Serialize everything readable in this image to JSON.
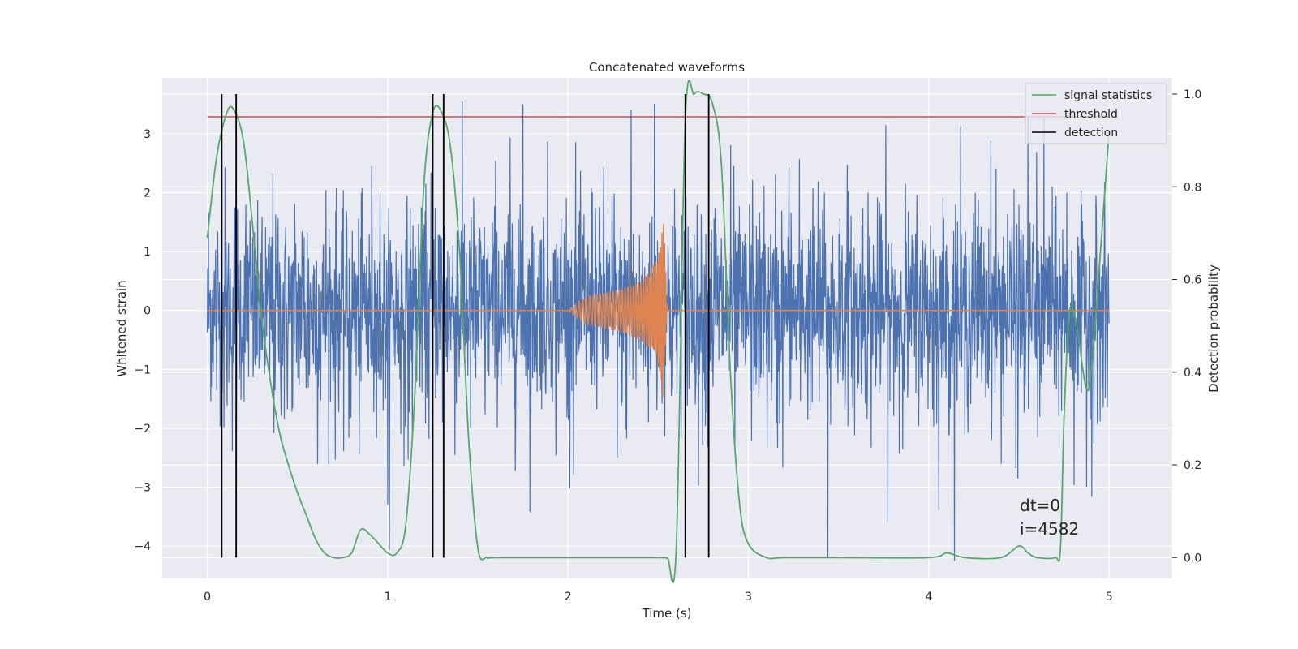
{
  "chart_data": {
    "type": "line",
    "title": "Concatenated waveforms",
    "xlabel": "Time (s)",
    "ylabel": "Whitened strain",
    "y2label": "Detection probability",
    "xlim": [
      -0.25,
      5.35
    ],
    "ylim": [
      -4.55,
      3.95
    ],
    "y2lim": [
      -0.045,
      1.035
    ],
    "xticks": [
      0,
      1,
      2,
      3,
      4,
      5
    ],
    "yticks": [
      -4,
      -3,
      -2,
      -1,
      0,
      1,
      2,
      3
    ],
    "y2ticks": [
      0.0,
      0.2,
      0.4,
      0.6,
      0.8,
      1.0
    ],
    "grid": true,
    "legend_position": "top-right",
    "colors": {
      "plot_bg": "#eaeaf2",
      "grid": "#ffffff",
      "noise": "#4c72b0",
      "injection": "#dd8452",
      "signal_statistics": "#55a868",
      "threshold": "#c44e52",
      "detection": "#000000",
      "text": "#262626"
    },
    "series": [
      {
        "role": "noise",
        "x_range": [
          0,
          5
        ],
        "amplitude_y": [
          -2.0,
          2.0
        ],
        "extreme_peaks": [
          [
            0.08,
            2.8
          ],
          [
            1.75,
            3.5
          ],
          [
            2.35,
            3.4
          ],
          [
            2.48,
            3.5
          ],
          [
            4.55,
            3.3
          ],
          [
            3.44,
            -4.2
          ],
          [
            1.0,
            -3.3
          ]
        ]
      },
      {
        "role": "injection",
        "x": [
          0,
          2.0,
          2.1,
          2.2,
          2.3,
          2.4,
          2.45,
          2.5,
          2.53,
          2.55,
          5.0
        ],
        "y_envelope": [
          0,
          0,
          0.25,
          0.3,
          0.38,
          0.5,
          0.65,
          0.9,
          1.6,
          0,
          0
        ]
      },
      {
        "name": "signal statistics",
        "axis": "right",
        "x": [
          0.0,
          0.05,
          0.1,
          0.14,
          0.2,
          0.25,
          0.3,
          0.35,
          0.4,
          0.45,
          0.5,
          0.55,
          0.6,
          0.65,
          0.7,
          0.75,
          0.8,
          0.85,
          0.9,
          0.95,
          1.0,
          1.05,
          1.1,
          1.15,
          1.2,
          1.25,
          1.3,
          1.35,
          1.4,
          1.45,
          1.5,
          1.55,
          1.6,
          2.0,
          2.5,
          2.55,
          2.6,
          2.65,
          2.7,
          2.75,
          2.8,
          2.85,
          2.9,
          2.95,
          3.0,
          3.1,
          3.2,
          3.5,
          4.0,
          4.1,
          4.2,
          4.4,
          4.5,
          4.55,
          4.6,
          4.7,
          4.73,
          4.75,
          4.78,
          4.82,
          4.87,
          4.9,
          4.95,
          5.0
        ],
        "y": [
          0.69,
          0.86,
          0.95,
          0.97,
          0.9,
          0.72,
          0.52,
          0.38,
          0.27,
          0.2,
          0.14,
          0.09,
          0.04,
          0.01,
          0.0,
          0.0,
          0.01,
          0.06,
          0.05,
          0.03,
          0.01,
          0.01,
          0.07,
          0.35,
          0.8,
          0.96,
          0.96,
          0.88,
          0.65,
          0.25,
          0.02,
          0.0,
          0.0,
          0.0,
          0.0,
          0.0,
          0.02,
          0.94,
          1.0,
          1.0,
          0.98,
          0.85,
          0.4,
          0.12,
          0.03,
          0.0,
          0.0,
          0.0,
          0.0,
          0.01,
          0.0,
          0.0,
          0.025,
          0.01,
          0.0,
          0.0,
          0.02,
          0.3,
          0.53,
          0.5,
          0.37,
          0.4,
          0.65,
          0.92
        ]
      },
      {
        "name": "threshold",
        "axis": "right",
        "x": [
          0,
          5
        ],
        "y": [
          0.951,
          0.951
        ]
      },
      {
        "name": "detection",
        "axis": "right",
        "x": [
          0.08,
          0.16,
          1.25,
          1.31,
          2.65,
          2.78
        ],
        "y_range": [
          0.0,
          1.0
        ]
      }
    ],
    "annotations": [
      "dt=0",
      "i=4582"
    ]
  }
}
